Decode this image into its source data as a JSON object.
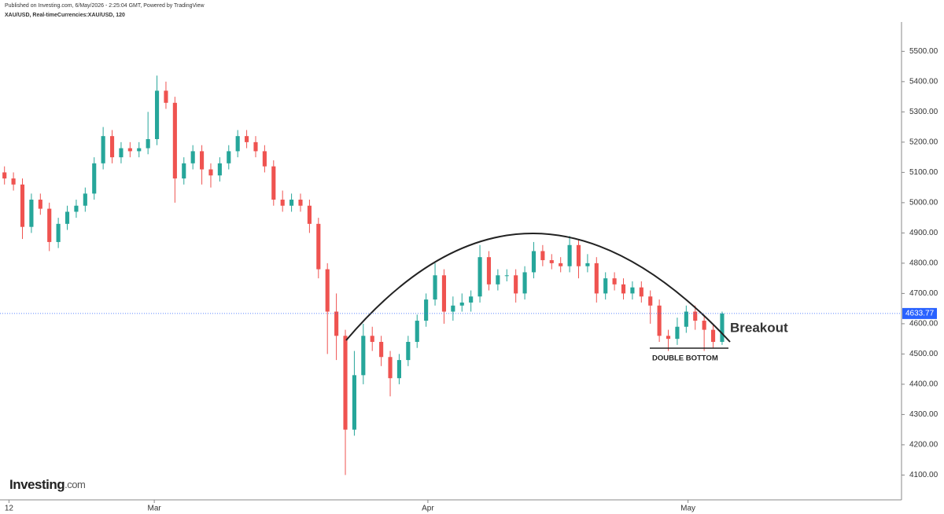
{
  "header": {
    "published": "Published on Investing.com, 6/May/2026 - 2:25:04 GMT, Powered by TradingView",
    "symbol": "XAU/USD, Real-timeCurrencies:XAU/USD, 120"
  },
  "logo": {
    "main": "Investing",
    "suffix": ".com"
  },
  "chart_data": {
    "type": "candlestick",
    "up_color": "#26a69a",
    "down_color": "#ef5350",
    "open": [
      5100,
      5080,
      5060,
      4920,
      5010,
      4980,
      4870,
      4930,
      4970,
      4990,
      5030,
      5130,
      5220,
      5150,
      5180,
      5170,
      5180,
      5210,
      5370,
      5330,
      5080,
      5130,
      5170,
      5110,
      5090,
      5130,
      5170,
      5220,
      5200,
      5170,
      5120,
      5010,
      4990,
      5010,
      4990,
      4930,
      4780,
      4640,
      4560,
      4250,
      4430,
      4560,
      4540,
      4490,
      4420,
      4480,
      4540,
      4610,
      4680,
      4760,
      4640,
      4660,
      4670,
      4690,
      4820,
      4730,
      4760,
      4760,
      4700,
      4770,
      4840,
      4810,
      4800,
      4790,
      4860,
      4790,
      4800,
      4700,
      4750,
      4730,
      4700,
      4720,
      4690,
      4660,
      4560,
      4550,
      4590,
      4640,
      4610,
      4580,
      4540
    ],
    "high": [
      5120,
      5100,
      5080,
      5030,
      5030,
      5000,
      4950,
      4990,
      5010,
      5050,
      5150,
      5250,
      5240,
      5200,
      5200,
      5200,
      5300,
      5420,
      5400,
      5350,
      5150,
      5190,
      5190,
      5130,
      5150,
      5190,
      5240,
      5240,
      5220,
      5190,
      5140,
      5040,
      5030,
      5030,
      5010,
      4950,
      4800,
      4700,
      4580,
      4510,
      4600,
      4590,
      4560,
      4510,
      4500,
      4560,
      4630,
      4700,
      4800,
      4780,
      4690,
      4700,
      4710,
      4860,
      4840,
      4780,
      4780,
      4780,
      4790,
      4870,
      4860,
      4830,
      4820,
      4890,
      4880,
      4830,
      4820,
      4770,
      4770,
      4750,
      4740,
      4740,
      4710,
      4680,
      4580,
      4620,
      4660,
      4660,
      4630,
      4600,
      4640
    ],
    "low": [
      5060,
      5040,
      4880,
      4900,
      4960,
      4840,
      4850,
      4910,
      4950,
      4970,
      5010,
      5110,
      5130,
      5130,
      5150,
      5150,
      5160,
      5190,
      5310,
      5000,
      5060,
      5110,
      5060,
      5050,
      5070,
      5110,
      5150,
      5180,
      5150,
      5100,
      4990,
      4970,
      4970,
      4970,
      4900,
      4750,
      4500,
      4480,
      4100,
      4230,
      4400,
      4510,
      4460,
      4360,
      4400,
      4460,
      4520,
      4590,
      4660,
      4600,
      4610,
      4640,
      4640,
      4670,
      4710,
      4710,
      4740,
      4670,
      4680,
      4750,
      4790,
      4780,
      4770,
      4770,
      4750,
      4770,
      4670,
      4680,
      4710,
      4680,
      4680,
      4670,
      4600,
      4540,
      4510,
      4530,
      4570,
      4580,
      4510,
      4520,
      4530
    ],
    "close": [
      5080,
      5060,
      4920,
      5010,
      4980,
      4870,
      4930,
      4970,
      4990,
      5030,
      5130,
      5220,
      5150,
      5180,
      5170,
      5180,
      5210,
      5370,
      5330,
      5080,
      5130,
      5170,
      5110,
      5090,
      5130,
      5170,
      5220,
      5200,
      5170,
      5120,
      5010,
      4990,
      5010,
      4990,
      4930,
      4780,
      4640,
      4560,
      4250,
      4430,
      4560,
      4540,
      4490,
      4420,
      4480,
      4540,
      4610,
      4680,
      4760,
      4640,
      4660,
      4670,
      4690,
      4820,
      4730,
      4760,
      4760,
      4700,
      4770,
      4840,
      4810,
      4800,
      4790,
      4860,
      4790,
      4800,
      4700,
      4750,
      4730,
      4700,
      4720,
      4690,
      4660,
      4560,
      4550,
      4590,
      4640,
      4610,
      4580,
      4540,
      4633.77
    ],
    "last_price": 4633.77,
    "xlim": [
      -0.5,
      100
    ],
    "xticks": [
      {
        "value": 0.5,
        "label": "12"
      },
      {
        "value": 16.7,
        "label": "Mar"
      },
      {
        "value": 47.2,
        "label": "Apr"
      },
      {
        "value": 76.2,
        "label": "May"
      }
    ],
    "ylim": [
      4018,
      5597
    ],
    "yticks": [
      {
        "value": 4100,
        "label": "4100.00"
      },
      {
        "value": 4200,
        "label": "4200.00"
      },
      {
        "value": 4300,
        "label": "4300.00"
      },
      {
        "value": 4400,
        "label": "4400.00"
      },
      {
        "value": 4500,
        "label": "4500.00"
      },
      {
        "value": 4600,
        "label": "4600.00"
      },
      {
        "value": 4700,
        "label": "4700.00"
      },
      {
        "value": 4800,
        "label": "4800.00"
      },
      {
        "value": 4900,
        "label": "4900.00"
      },
      {
        "value": 5000,
        "label": "5000.00"
      },
      {
        "value": 5100,
        "label": "5100.00"
      },
      {
        "value": 5200,
        "label": "5200.00"
      },
      {
        "value": 5300,
        "label": "5300.00"
      },
      {
        "value": 5400,
        "label": "5400.00"
      },
      {
        "value": 5500,
        "label": "5500.00"
      }
    ],
    "annotations": {
      "breakout": "Breakout",
      "double_bottom": "DOUBLE BOTTOM"
    }
  }
}
